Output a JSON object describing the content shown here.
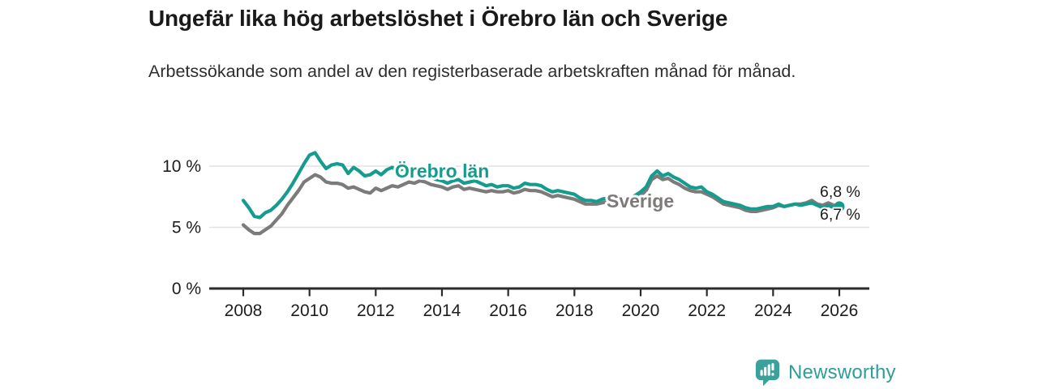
{
  "header": {
    "title": "Ungefär lika hög arbetslöshet i Örebro län och Sverige",
    "subtitle": "Arbetssökande som andel av den registerbaserade arbetskraften månad för månad."
  },
  "chart_data": {
    "type": "line",
    "unit": "%",
    "x_start": 2008,
    "points_per_year": 6,
    "x_end": 2026,
    "xlim": [
      2007,
      2027
    ],
    "ylim": [
      0,
      12
    ],
    "grid": "horizontal-light",
    "legend_position": "inline-labels-on-lines",
    "x_tick_labels": [
      "2008",
      "2010",
      "2012",
      "2014",
      "2016",
      "2018",
      "2020",
      "2022",
      "2024",
      "2026"
    ],
    "y_tick_labels": [
      "0 %",
      "5 %",
      "10 %"
    ],
    "y_tick_values": [
      0,
      5,
      10
    ],
    "series": [
      {
        "name": "Örebro län",
        "color": "#159c8e",
        "end_label": "6,7 %",
        "end_dot": true,
        "values": [
          7.2,
          6.6,
          5.9,
          5.8,
          6.2,
          6.4,
          6.8,
          7.3,
          7.9,
          8.6,
          9.4,
          10.2,
          10.9,
          11.1,
          10.4,
          9.8,
          10.1,
          10.2,
          10.1,
          9.4,
          9.9,
          9.6,
          9.2,
          9.3,
          9.6,
          9.3,
          9.7,
          9.9,
          9.6,
          9.8,
          9.8,
          9.6,
          9.4,
          9.2,
          9.1,
          8.9,
          8.8,
          8.6,
          8.8,
          8.9,
          8.6,
          8.7,
          8.8,
          8.6,
          8.4,
          8.5,
          8.3,
          8.4,
          8.4,
          8.2,
          8.3,
          8.6,
          8.5,
          8.5,
          8.4,
          8.1,
          7.9,
          8.0,
          7.9,
          7.8,
          7.7,
          7.4,
          7.2,
          7.2,
          7.1,
          7.3,
          7.4,
          7.2,
          7.3,
          7.4,
          7.3,
          7.6,
          7.9,
          8.3,
          9.2,
          9.6,
          9.2,
          9.4,
          9.1,
          8.9,
          8.6,
          8.3,
          8.2,
          8.3,
          7.9,
          7.7,
          7.4,
          7.1,
          7.0,
          6.9,
          6.8,
          6.6,
          6.5,
          6.5,
          6.6,
          6.7,
          6.7,
          6.9,
          6.7,
          6.8,
          6.9,
          6.8,
          6.9,
          7.0,
          6.8,
          6.6,
          6.8,
          6.6,
          6.7
        ]
      },
      {
        "name": "Sverige",
        "color": "#7d7a7a",
        "end_label": "6,8 %",
        "end_dot": false,
        "values": [
          5.2,
          4.8,
          4.5,
          4.5,
          4.8,
          5.1,
          5.6,
          6.1,
          6.8,
          7.4,
          8.0,
          8.7,
          9.0,
          9.3,
          9.1,
          8.7,
          8.6,
          8.6,
          8.5,
          8.2,
          8.3,
          8.1,
          7.9,
          7.8,
          8.2,
          8.0,
          8.2,
          8.4,
          8.3,
          8.5,
          8.7,
          8.6,
          8.8,
          8.7,
          8.5,
          8.4,
          8.3,
          8.1,
          8.3,
          8.4,
          8.1,
          8.2,
          8.1,
          8.0,
          7.9,
          8.0,
          7.9,
          7.9,
          8.0,
          7.8,
          7.9,
          8.1,
          8.0,
          8.0,
          7.9,
          7.7,
          7.5,
          7.6,
          7.5,
          7.4,
          7.3,
          7.1,
          6.9,
          6.9,
          6.9,
          7.0,
          7.1,
          6.9,
          7.0,
          7.1,
          7.0,
          7.3,
          7.6,
          8.0,
          8.9,
          9.2,
          8.9,
          9.0,
          8.7,
          8.5,
          8.2,
          8.0,
          7.9,
          7.9,
          7.7,
          7.5,
          7.2,
          6.9,
          6.8,
          6.7,
          6.6,
          6.4,
          6.3,
          6.3,
          6.4,
          6.5,
          6.6,
          6.8,
          6.7,
          6.8,
          6.9,
          6.9,
          7.0,
          7.2,
          6.9,
          6.8,
          7.0,
          6.8,
          6.8
        ]
      }
    ],
    "colors": {
      "gridline": "#e2e2e2",
      "axis": "#2b2b2b",
      "tick_text": "#1d1d1d"
    }
  },
  "footer": {
    "brand": "Newsworthy",
    "brand_color": "#2f9d98",
    "logo_icon": "bar-chart-badge-icon",
    "logo_badge_color": "#3aa19b"
  }
}
